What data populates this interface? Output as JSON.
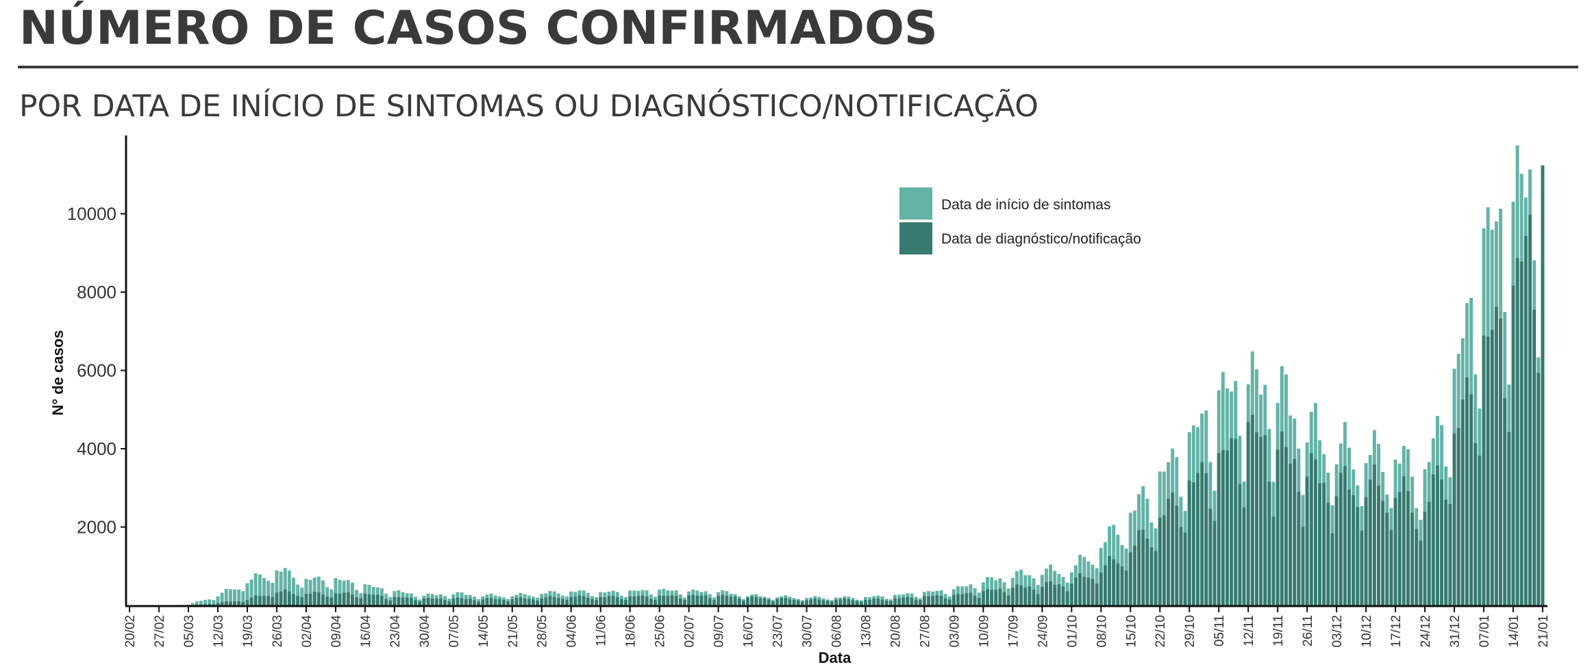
{
  "header": {
    "title": "NÚMERO DE CASOS CONFIRMADOS",
    "subtitle": "POR DATA DE INÍCIO DE SINTOMAS OU DIAGNÓSTICO/NOTIFICAÇÃO"
  },
  "colors": {
    "sintomas": "#64b3a7",
    "diagnostico": "#377a70",
    "axis": "#111111"
  },
  "chart_data": {
    "type": "bar",
    "stacked": false,
    "overlaid": true,
    "xlabel": "Data",
    "ylabel": "N° de casos",
    "ylim": [
      0,
      12000
    ],
    "yticks": [
      2000,
      4000,
      6000,
      8000,
      10000
    ],
    "grid": false,
    "legend_position": "top-right",
    "x_start": "2020-02-20",
    "x_end": "2021-01-21",
    "xticks": [
      "20/02",
      "27/02",
      "05/03",
      "12/03",
      "19/03",
      "26/03",
      "02/04",
      "09/04",
      "16/04",
      "23/04",
      "30/04",
      "07/05",
      "14/05",
      "21/05",
      "28/05",
      "04/06",
      "11/06",
      "18/06",
      "25/06",
      "02/07",
      "09/07",
      "16/07",
      "23/07",
      "30/07",
      "06/08",
      "13/08",
      "20/08",
      "27/08",
      "03/09",
      "10/09",
      "17/09",
      "24/09",
      "01/10",
      "08/10",
      "15/10",
      "22/10",
      "29/10",
      "05/11",
      "12/11",
      "19/11",
      "26/11",
      "03/12",
      "10/12",
      "17/12",
      "24/12",
      "31/12",
      "07/01",
      "14/01",
      "21/01"
    ],
    "series": [
      {
        "name": "Data de início de sintomas",
        "color": "#64b3a7",
        "weekly_values": [
          0,
          0,
          20,
          250,
          600,
          900,
          650,
          650,
          500,
          350,
          250,
          300,
          250,
          250,
          300,
          350,
          320,
          350,
          380,
          350,
          350,
          250,
          220,
          200,
          200,
          200,
          250,
          320,
          400,
          600,
          750,
          850,
          900,
          1500,
          2300,
          3200,
          4100,
          5200,
          5600,
          5400,
          4500,
          3900,
          3800,
          3700,
          3300,
          5600,
          9000,
          10000,
          11200
        ]
      },
      {
        "name": "Data de diagnóstico/notificação",
        "color": "#377a70",
        "weekly_values": [
          0,
          0,
          5,
          60,
          150,
          350,
          300,
          300,
          280,
          200,
          170,
          170,
          160,
          170,
          190,
          220,
          210,
          220,
          230,
          240,
          240,
          200,
          170,
          140,
          150,
          140,
          170,
          220,
          250,
          350,
          450,
          500,
          600,
          900,
          1400,
          2200,
          3000,
          3600,
          4400,
          3900,
          3400,
          3000,
          3000,
          2900,
          2400,
          4200,
          6400,
          7600,
          10800
        ]
      }
    ]
  }
}
